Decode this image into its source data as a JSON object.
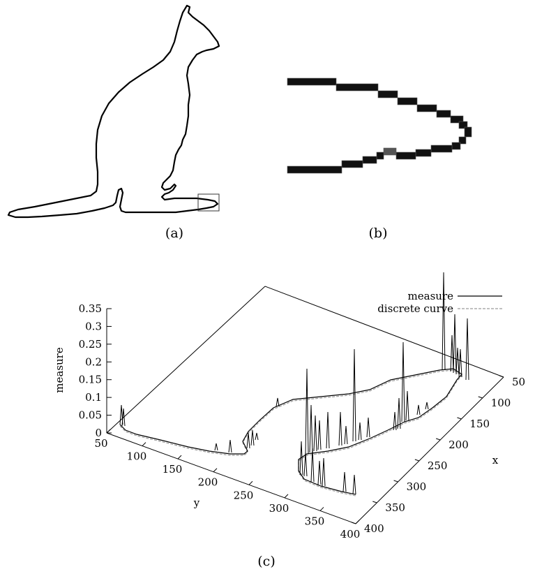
{
  "captions": {
    "a": "(a)",
    "b": "(b)",
    "c": "(c)"
  },
  "chart_data": {
    "type": "surface-3d",
    "zlabel": "measure",
    "xlabel": "x",
    "ylabel": "y",
    "zlim": [
      0,
      0.35
    ],
    "xlim": [
      50,
      400
    ],
    "ylim": [
      50,
      400
    ],
    "z_ticks": [
      "0",
      "0.05",
      "0.1",
      "0.15",
      "0.2",
      "0.25",
      "0.3",
      "0.35"
    ],
    "y_ticks": [
      "50",
      "100",
      "150",
      "200",
      "250",
      "300",
      "350",
      "400"
    ],
    "x_ticks": [
      "50",
      "100",
      "150",
      "200",
      "250",
      "300",
      "350",
      "400"
    ],
    "legend": [
      {
        "label": "measure",
        "style": "solid",
        "color": "#000000"
      },
      {
        "label": "discrete curve",
        "style": "dashed",
        "color": "#9a9a9a"
      }
    ]
  }
}
